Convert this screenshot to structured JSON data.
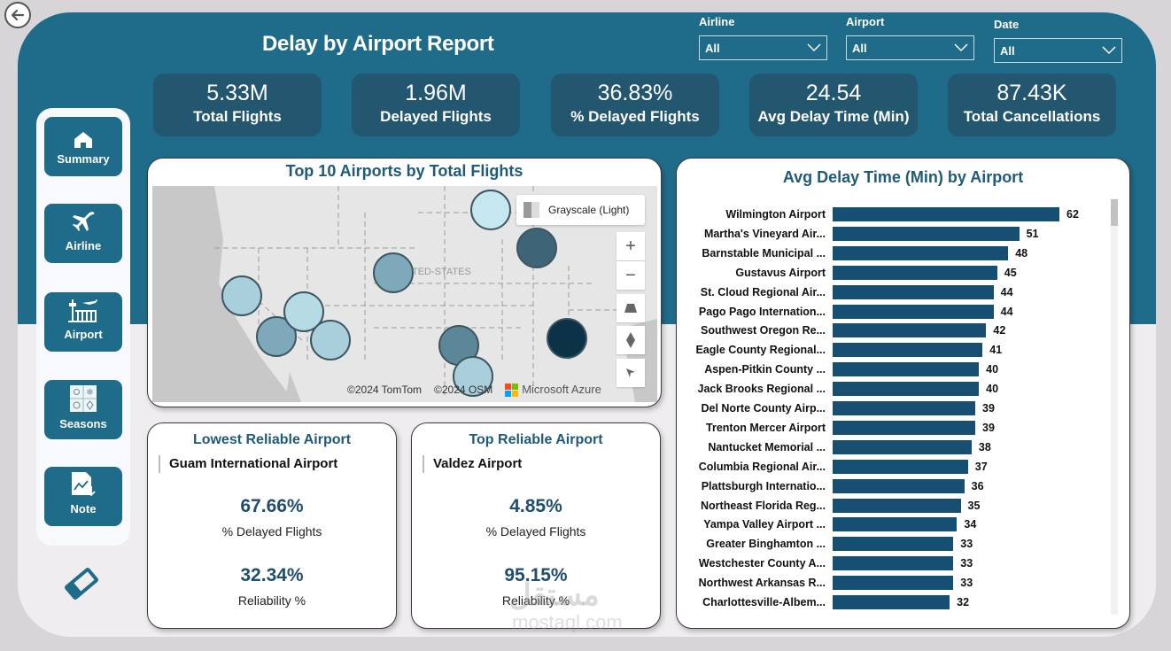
{
  "header": {
    "title": "Delay by Airport Report",
    "back_icon": "arrow-left-circle-icon"
  },
  "filters": [
    {
      "label": "Airline",
      "value": "All"
    },
    {
      "label": "Airport",
      "value": "All"
    },
    {
      "label": "Date",
      "value": "All"
    }
  ],
  "kpis": [
    {
      "value": "5.33M",
      "label": "Total Flights"
    },
    {
      "value": "1.96M",
      "label": "Delayed Flights"
    },
    {
      "value": "36.83%",
      "label": "% Delayed Flights"
    },
    {
      "value": "24.54",
      "label": "Avg Delay Time (Min)"
    },
    {
      "value": "87.43K",
      "label": "Total Cancellations"
    }
  ],
  "nav": [
    {
      "label": "Summary",
      "icon": "home-icon"
    },
    {
      "label": "Airline",
      "icon": "airplane-icon"
    },
    {
      "label": "Airport",
      "icon": "airport-tower-icon"
    },
    {
      "label": "Seasons",
      "icon": "seasons-icon"
    },
    {
      "label": "Note",
      "icon": "note-chart-icon"
    }
  ],
  "clear_filters_icon": "eraser-icon",
  "map": {
    "title": "Top 10 Airports by Total Flights",
    "style_label": "Grayscale (Light)",
    "country_label": "NITED-STATES",
    "attribution": [
      "©2024 TomTom",
      "©2024 OSM"
    ],
    "provider": "Microsoft Azure",
    "controls": [
      "zoom-in",
      "zoom-out",
      "tilt",
      "compass",
      "select"
    ]
  },
  "lowest_reliable": {
    "title": "Lowest Reliable Airport",
    "airport": "Guam International Airport",
    "delayed_pct": "67.66%",
    "delayed_label": "% Delayed Flights",
    "reliability_pct": "32.34%",
    "reliability_label": "Reliability %"
  },
  "top_reliable": {
    "title": "Top Reliable Airport",
    "airport": "Valdez Airport",
    "delayed_pct": "4.85%",
    "delayed_label": "% Delayed Flights",
    "reliability_pct": "95.15%",
    "reliability_label": "Reliability %"
  },
  "chart_data": {
    "type": "bar",
    "orientation": "horizontal",
    "title": "Avg Delay Time (Min) by Airport",
    "xlabel": "",
    "ylabel": "",
    "categories": [
      "Wilmington Airport",
      "Martha's Vineyard Air...",
      "Barnstable Municipal ...",
      "Gustavus Airport",
      "St. Cloud Regional Air...",
      "Pago Pago Internation...",
      "Southwest Oregon Re...",
      "Eagle County Regional...",
      "Aspen-Pitkin County ...",
      "Jack Brooks Regional ...",
      "Del Norte County Airp...",
      "Trenton Mercer Airport",
      "Nantucket Memorial ...",
      "Columbia Regional Air...",
      "Plattsburgh Internatio...",
      "Northeast Florida Reg...",
      "Yampa Valley Airport ...",
      "Greater Binghamton ...",
      "Westchester County A...",
      "Northwest Arkansas R...",
      "Charlottesville-Albem..."
    ],
    "values": [
      62,
      51,
      48,
      45,
      44,
      44,
      42,
      41,
      40,
      40,
      39,
      39,
      38,
      37,
      36,
      35,
      34,
      33,
      33,
      33,
      32
    ],
    "xlim": [
      0,
      62
    ],
    "grid": false,
    "bar_color": "#174f72"
  },
  "watermark": {
    "arabic": "مستقل",
    "latin": "mostaql.com"
  }
}
